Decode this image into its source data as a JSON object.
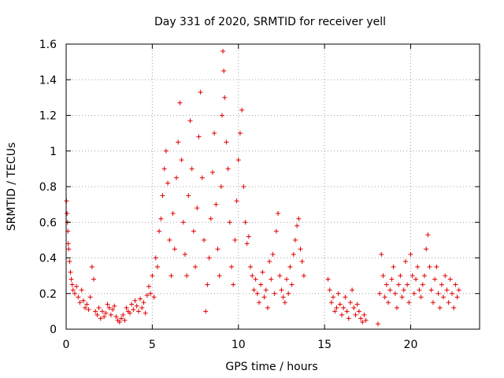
{
  "chart_data": {
    "type": "scatter",
    "title": "Day 331 of 2020, SRMTID for receiver yell",
    "xlabel": "GPS time / hours",
    "ylabel": "SRMTID / TECUs",
    "xlim": [
      0,
      24
    ],
    "ylim": [
      0,
      1.6
    ],
    "x_ticks": [
      0,
      5,
      10,
      15,
      20
    ],
    "x_tick_labels": [
      "0",
      "5",
      "10",
      "15",
      "20"
    ],
    "y_ticks": [
      0,
      0.2,
      0.4,
      0.6,
      0.8,
      1.0,
      1.2,
      1.4,
      1.6
    ],
    "y_tick_labels": [
      "0",
      "0.2",
      "0.4",
      "0.6",
      "0.8",
      "1",
      "1.2",
      "1.4",
      "1.6"
    ],
    "grid": true,
    "marker": "+",
    "color": "#e00000",
    "series": [
      {
        "name": "SRMTID",
        "points": [
          [
            0.02,
            0.72
          ],
          [
            0.05,
            0.65
          ],
          [
            0.08,
            0.6
          ],
          [
            0.1,
            0.55
          ],
          [
            0.12,
            0.48
          ],
          [
            0.15,
            0.45
          ],
          [
            0.2,
            0.38
          ],
          [
            0.25,
            0.32
          ],
          [
            0.3,
            0.28
          ],
          [
            0.35,
            0.25
          ],
          [
            0.4,
            0.22
          ],
          [
            0.5,
            0.2
          ],
          [
            0.6,
            0.24
          ],
          [
            0.7,
            0.18
          ],
          [
            0.8,
            0.15
          ],
          [
            0.9,
            0.22
          ],
          [
            1.0,
            0.16
          ],
          [
            1.1,
            0.12
          ],
          [
            1.2,
            0.14
          ],
          [
            1.3,
            0.11
          ],
          [
            1.4,
            0.18
          ],
          [
            1.5,
            0.35
          ],
          [
            1.6,
            0.28
          ],
          [
            1.7,
            0.1
          ],
          [
            1.8,
            0.08
          ],
          [
            1.9,
            0.12
          ],
          [
            2.0,
            0.06
          ],
          [
            2.1,
            0.1
          ],
          [
            2.2,
            0.07
          ],
          [
            2.3,
            0.09
          ],
          [
            2.4,
            0.14
          ],
          [
            2.5,
            0.12
          ],
          [
            2.6,
            0.08
          ],
          [
            2.7,
            0.11
          ],
          [
            2.8,
            0.13
          ],
          [
            2.9,
            0.07
          ],
          [
            3.0,
            0.05
          ],
          [
            3.1,
            0.04
          ],
          [
            3.2,
            0.06
          ],
          [
            3.3,
            0.08
          ],
          [
            3.4,
            0.05
          ],
          [
            3.5,
            0.12
          ],
          [
            3.6,
            0.1
          ],
          [
            3.7,
            0.09
          ],
          [
            3.8,
            0.14
          ],
          [
            3.9,
            0.11
          ],
          [
            4.0,
            0.16
          ],
          [
            4.1,
            0.13
          ],
          [
            4.2,
            0.1
          ],
          [
            4.3,
            0.17
          ],
          [
            4.4,
            0.12
          ],
          [
            4.5,
            0.15
          ],
          [
            4.6,
            0.09
          ],
          [
            4.7,
            0.19
          ],
          [
            4.8,
            0.24
          ],
          [
            4.9,
            0.2
          ],
          [
            5.0,
            0.3
          ],
          [
            5.1,
            0.18
          ],
          [
            5.2,
            0.4
          ],
          [
            5.3,
            0.35
          ],
          [
            5.4,
            0.55
          ],
          [
            5.5,
            0.62
          ],
          [
            5.6,
            0.75
          ],
          [
            5.7,
            0.9
          ],
          [
            5.8,
            1.0
          ],
          [
            5.9,
            0.82
          ],
          [
            6.0,
            0.5
          ],
          [
            6.1,
            0.3
          ],
          [
            6.2,
            0.65
          ],
          [
            6.3,
            0.45
          ],
          [
            6.4,
            0.85
          ],
          [
            6.5,
            1.05
          ],
          [
            6.6,
            1.27
          ],
          [
            6.7,
            0.95
          ],
          [
            6.8,
            0.6
          ],
          [
            6.9,
            0.42
          ],
          [
            7.0,
            0.3
          ],
          [
            7.1,
            0.75
          ],
          [
            7.2,
            1.17
          ],
          [
            7.3,
            0.9
          ],
          [
            7.4,
            0.55
          ],
          [
            7.5,
            0.35
          ],
          [
            7.6,
            0.68
          ],
          [
            7.7,
            1.08
          ],
          [
            7.8,
            1.33
          ],
          [
            7.9,
            0.85
          ],
          [
            8.0,
            0.5
          ],
          [
            8.1,
            0.1
          ],
          [
            8.2,
            0.25
          ],
          [
            8.3,
            0.4
          ],
          [
            8.4,
            0.62
          ],
          [
            8.5,
            0.88
          ],
          [
            8.6,
            1.1
          ],
          [
            8.7,
            0.7
          ],
          [
            8.8,
            0.45
          ],
          [
            8.9,
            0.3
          ],
          [
            9.0,
            0.8
          ],
          [
            9.05,
            1.2
          ],
          [
            9.1,
            1.56
          ],
          [
            9.15,
            1.45
          ],
          [
            9.2,
            1.3
          ],
          [
            9.3,
            1.05
          ],
          [
            9.4,
            0.9
          ],
          [
            9.5,
            0.6
          ],
          [
            9.6,
            0.35
          ],
          [
            9.7,
            0.25
          ],
          [
            9.8,
            0.5
          ],
          [
            9.9,
            0.72
          ],
          [
            10.0,
            0.95
          ],
          [
            10.1,
            1.1
          ],
          [
            10.2,
            1.23
          ],
          [
            10.3,
            0.8
          ],
          [
            10.4,
            0.6
          ],
          [
            10.5,
            0.48
          ],
          [
            10.6,
            0.52
          ],
          [
            10.7,
            0.35
          ],
          [
            10.8,
            0.3
          ],
          [
            10.9,
            0.22
          ],
          [
            11.0,
            0.28
          ],
          [
            11.1,
            0.2
          ],
          [
            11.2,
            0.15
          ],
          [
            11.3,
            0.25
          ],
          [
            11.4,
            0.32
          ],
          [
            11.5,
            0.18
          ],
          [
            11.6,
            0.22
          ],
          [
            11.7,
            0.12
          ],
          [
            11.8,
            0.38
          ],
          [
            11.9,
            0.28
          ],
          [
            12.0,
            0.42
          ],
          [
            12.1,
            0.2
          ],
          [
            12.2,
            0.55
          ],
          [
            12.3,
            0.65
          ],
          [
            12.4,
            0.3
          ],
          [
            12.5,
            0.22
          ],
          [
            12.6,
            0.18
          ],
          [
            12.7,
            0.15
          ],
          [
            12.8,
            0.28
          ],
          [
            12.9,
            0.2
          ],
          [
            13.0,
            0.35
          ],
          [
            13.1,
            0.25
          ],
          [
            13.2,
            0.42
          ],
          [
            13.3,
            0.5
          ],
          [
            13.4,
            0.58
          ],
          [
            13.5,
            0.62
          ],
          [
            13.6,
            0.45
          ],
          [
            13.7,
            0.38
          ],
          [
            13.8,
            0.3
          ],
          [
            15.2,
            0.28
          ],
          [
            15.3,
            0.22
          ],
          [
            15.4,
            0.15
          ],
          [
            15.5,
            0.18
          ],
          [
            15.6,
            0.1
          ],
          [
            15.7,
            0.12
          ],
          [
            15.8,
            0.2
          ],
          [
            15.9,
            0.14
          ],
          [
            16.0,
            0.08
          ],
          [
            16.1,
            0.12
          ],
          [
            16.2,
            0.18
          ],
          [
            16.3,
            0.1
          ],
          [
            16.4,
            0.06
          ],
          [
            16.5,
            0.15
          ],
          [
            16.6,
            0.22
          ],
          [
            16.7,
            0.12
          ],
          [
            16.8,
            0.08
          ],
          [
            16.9,
            0.14
          ],
          [
            17.0,
            0.1
          ],
          [
            17.1,
            0.06
          ],
          [
            17.2,
            0.04
          ],
          [
            17.3,
            0.08
          ],
          [
            17.4,
            0.05
          ],
          [
            18.1,
            0.03
          ],
          [
            18.2,
            0.2
          ],
          [
            18.3,
            0.42
          ],
          [
            18.4,
            0.3
          ],
          [
            18.5,
            0.18
          ],
          [
            18.6,
            0.25
          ],
          [
            18.7,
            0.15
          ],
          [
            18.8,
            0.22
          ],
          [
            18.9,
            0.28
          ],
          [
            19.0,
            0.35
          ],
          [
            19.1,
            0.2
          ],
          [
            19.2,
            0.12
          ],
          [
            19.3,
            0.25
          ],
          [
            19.4,
            0.3
          ],
          [
            19.5,
            0.18
          ],
          [
            19.6,
            0.22
          ],
          [
            19.7,
            0.38
          ],
          [
            19.8,
            0.25
          ],
          [
            19.9,
            0.15
          ],
          [
            20.0,
            0.42
          ],
          [
            20.1,
            0.3
          ],
          [
            20.2,
            0.2
          ],
          [
            20.3,
            0.28
          ],
          [
            20.4,
            0.35
          ],
          [
            20.5,
            0.22
          ],
          [
            20.6,
            0.18
          ],
          [
            20.7,
            0.25
          ],
          [
            20.8,
            0.3
          ],
          [
            20.9,
            0.45
          ],
          [
            21.0,
            0.53
          ],
          [
            21.1,
            0.35
          ],
          [
            21.2,
            0.22
          ],
          [
            21.3,
            0.15
          ],
          [
            21.4,
            0.28
          ],
          [
            21.5,
            0.35
          ],
          [
            21.6,
            0.2
          ],
          [
            21.7,
            0.12
          ],
          [
            21.8,
            0.25
          ],
          [
            21.9,
            0.18
          ],
          [
            22.0,
            0.3
          ],
          [
            22.1,
            0.22
          ],
          [
            22.2,
            0.15
          ],
          [
            22.3,
            0.28
          ],
          [
            22.4,
            0.2
          ],
          [
            22.5,
            0.12
          ],
          [
            22.6,
            0.25
          ],
          [
            22.7,
            0.18
          ],
          [
            22.8,
            0.22
          ]
        ]
      }
    ]
  }
}
